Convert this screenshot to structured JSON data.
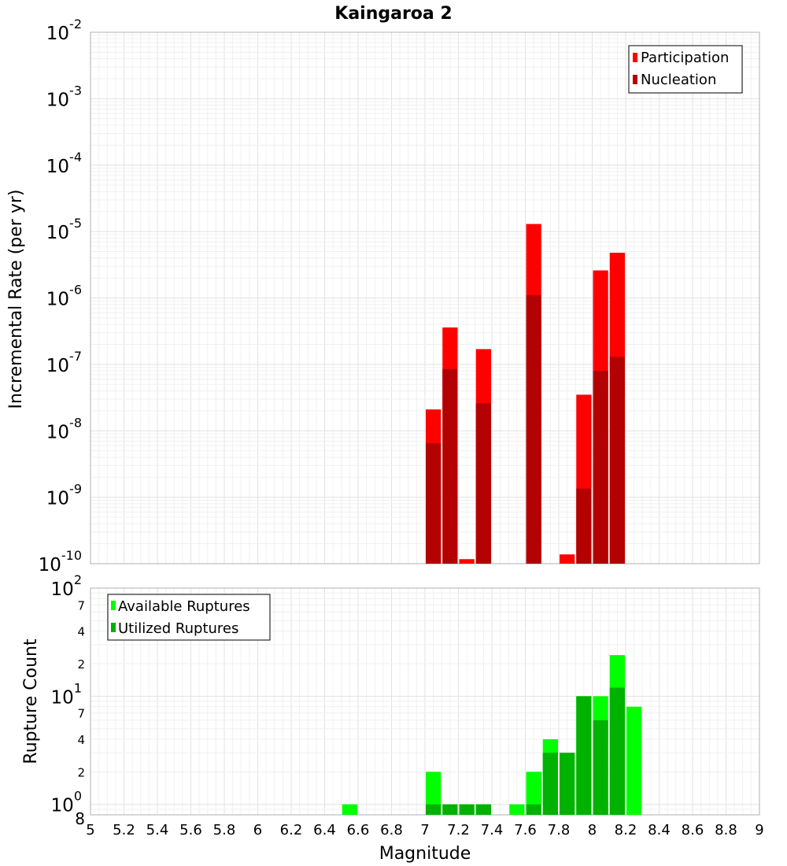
{
  "chart_data": [
    {
      "type": "bar",
      "title": "Kaingaroa 2",
      "ylabel": "Incremental Rate (per yr)",
      "y_scale": "log",
      "ylim": [
        1e-10,
        0.01
      ],
      "xlim": [
        5,
        9
      ],
      "grid": true,
      "legend_position": "top-right",
      "bin_width": 0.1,
      "y_tick_labels": [
        {
          "value": 1e-10,
          "base": "10",
          "exp": "-10"
        },
        {
          "value": 1e-09,
          "base": "10",
          "exp": "-9"
        },
        {
          "value": 1e-08,
          "base": "10",
          "exp": "-8"
        },
        {
          "value": 1e-07,
          "base": "10",
          "exp": "-7"
        },
        {
          "value": 1e-06,
          "base": "10",
          "exp": "-6"
        },
        {
          "value": 1e-05,
          "base": "10",
          "exp": "-5"
        },
        {
          "value": 0.0001,
          "base": "10",
          "exp": "-4"
        },
        {
          "value": 0.001,
          "base": "10",
          "exp": "-3"
        },
        {
          "value": 0.01,
          "base": "10",
          "exp": "-2"
        }
      ],
      "series": [
        {
          "name": "Participation",
          "color": "#ff0000",
          "points": [
            {
              "x": 7.05,
              "y": 2.1e-08
            },
            {
              "x": 7.15,
              "y": 3.6e-07
            },
            {
              "x": 7.25,
              "y": 1.17e-10
            },
            {
              "x": 7.35,
              "y": 1.7e-07
            },
            {
              "x": 7.65,
              "y": 1.3e-05
            },
            {
              "x": 7.85,
              "y": 1.38e-10
            },
            {
              "x": 7.95,
              "y": 3.5e-08
            },
            {
              "x": 8.05,
              "y": 2.6e-06
            },
            {
              "x": 8.15,
              "y": 4.8e-06
            }
          ]
        },
        {
          "name": "Nucleation",
          "color": "#b30000",
          "points": [
            {
              "x": 7.05,
              "y": 6.5e-09
            },
            {
              "x": 7.15,
              "y": 8.5e-08
            },
            {
              "x": 7.35,
              "y": 2.6e-08
            },
            {
              "x": 7.65,
              "y": 1.1e-06
            },
            {
              "x": 7.95,
              "y": 1.35e-09
            },
            {
              "x": 8.05,
              "y": 8e-08
            },
            {
              "x": 8.15,
              "y": 1.3e-07
            }
          ]
        }
      ]
    },
    {
      "type": "bar",
      "xlabel": "Magnitude",
      "ylabel": "Rupture Count",
      "y_scale": "log",
      "ylim": [
        0.8,
        100
      ],
      "xlim": [
        5,
        9
      ],
      "grid": true,
      "legend_position": "top-left",
      "bin_width": 0.1,
      "x_ticks": [
        "5",
        "5.2",
        "5.4",
        "5.6",
        "5.8",
        "6",
        "6.2",
        "6.4",
        "6.6",
        "6.8",
        "7",
        "7.2",
        "7.4",
        "7.6",
        "7.8",
        "8",
        "8.2",
        "8.4",
        "8.6",
        "8.8",
        "9"
      ],
      "y_major_ticks": [
        {
          "value": 1,
          "base": "10",
          "exp": "0"
        },
        {
          "value": 10,
          "base": "10",
          "exp": "1"
        },
        {
          "value": 100,
          "base": "10",
          "exp": "2"
        }
      ],
      "y_minor_ticks": [
        {
          "value": 0.8,
          "label": "8"
        },
        {
          "value": 2,
          "label": "2"
        },
        {
          "value": 4,
          "label": "4"
        },
        {
          "value": 7,
          "label": "7"
        },
        {
          "value": 20,
          "label": "2"
        },
        {
          "value": 40,
          "label": "4"
        },
        {
          "value": 70,
          "label": "7"
        }
      ],
      "series": [
        {
          "name": "Available Ruptures",
          "color": "#00ff00",
          "points": [
            {
              "x": 6.55,
              "y": 1
            },
            {
              "x": 7.05,
              "y": 2
            },
            {
              "x": 7.15,
              "y": 1
            },
            {
              "x": 7.25,
              "y": 1
            },
            {
              "x": 7.35,
              "y": 1
            },
            {
              "x": 7.55,
              "y": 1
            },
            {
              "x": 7.65,
              "y": 2
            },
            {
              "x": 7.75,
              "y": 4
            },
            {
              "x": 7.85,
              "y": 3
            },
            {
              "x": 7.95,
              "y": 10
            },
            {
              "x": 8.05,
              "y": 10
            },
            {
              "x": 8.15,
              "y": 24
            },
            {
              "x": 8.25,
              "y": 8
            }
          ]
        },
        {
          "name": "Utilized Ruptures",
          "color": "#00b200",
          "points": [
            {
              "x": 7.05,
              "y": 1
            },
            {
              "x": 7.15,
              "y": 1
            },
            {
              "x": 7.25,
              "y": 1
            },
            {
              "x": 7.35,
              "y": 1
            },
            {
              "x": 7.65,
              "y": 1
            },
            {
              "x": 7.75,
              "y": 3
            },
            {
              "x": 7.85,
              "y": 3
            },
            {
              "x": 7.95,
              "y": 10
            },
            {
              "x": 8.05,
              "y": 6
            },
            {
              "x": 8.15,
              "y": 12
            }
          ]
        }
      ]
    }
  ]
}
